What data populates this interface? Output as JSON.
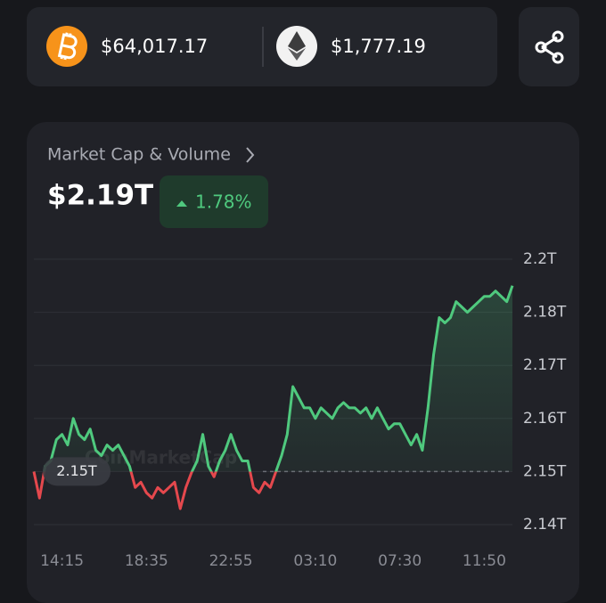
{
  "prices": {
    "btc": "$64,017.17",
    "eth": "$1,777.19"
  },
  "header": {
    "title": "Market Cap & Volume",
    "value": "$2.19T",
    "change": "1.78%"
  },
  "chart_data": {
    "type": "line",
    "watermark": "CoinMarketCap",
    "categories": [
      null,
      null,
      null,
      null,
      null,
      "14:15",
      null,
      null,
      null,
      null,
      null,
      null,
      null,
      null,
      null,
      null,
      null,
      null,
      null,
      null,
      "18:35",
      null,
      null,
      null,
      null,
      null,
      null,
      null,
      null,
      null,
      null,
      null,
      null,
      null,
      null,
      "22:55",
      null,
      null,
      null,
      null,
      null,
      null,
      null,
      null,
      null,
      null,
      null,
      null,
      null,
      null,
      "03:10",
      null,
      null,
      null,
      null,
      null,
      null,
      null,
      null,
      null,
      null,
      null,
      null,
      null,
      null,
      "07:30",
      null,
      null,
      null,
      null,
      null,
      null,
      null,
      null,
      null,
      null,
      null,
      null,
      null,
      null,
      "11:50",
      null,
      null,
      null,
      null,
      null
    ],
    "values": [
      2.15,
      2.145,
      2.151,
      2.152,
      2.156,
      2.157,
      2.155,
      2.16,
      2.157,
      2.156,
      2.158,
      2.154,
      2.153,
      2.155,
      2.154,
      2.155,
      2.153,
      2.151,
      2.147,
      2.148,
      2.146,
      2.145,
      2.147,
      2.146,
      2.147,
      2.148,
      2.143,
      2.147,
      2.1498,
      2.152,
      2.157,
      2.151,
      2.149,
      2.152,
      2.154,
      2.157,
      2.154,
      2.152,
      2.152,
      2.147,
      2.146,
      2.148,
      2.147,
      2.15,
      2.153,
      2.157,
      2.166,
      2.164,
      2.162,
      2.162,
      2.16,
      2.162,
      2.161,
      2.16,
      2.162,
      2.163,
      2.162,
      2.162,
      2.161,
      2.162,
      2.16,
      2.162,
      2.16,
      2.158,
      2.159,
      2.159,
      2.157,
      2.155,
      2.157,
      2.154,
      2.162,
      2.172,
      2.179,
      2.178,
      2.179,
      2.182,
      2.181,
      2.18,
      2.181,
      2.182,
      2.183,
      2.183,
      2.184,
      2.183,
      2.182,
      2.185
    ],
    "baseline": {
      "value": 2.15,
      "label": "2.15T"
    },
    "up_color": "#4fc97e",
    "down_color": "#e5484d",
    "ylim": [
      2.14,
      2.19
    ],
    "yticks": [
      {
        "value": 2.14,
        "label": "2.14T"
      },
      {
        "value": 2.15,
        "label": "2.15T"
      },
      {
        "value": 2.16,
        "label": "2.16T"
      },
      {
        "value": 2.17,
        "label": "2.17T"
      },
      {
        "value": 2.18,
        "label": "2.18T"
      },
      {
        "value": 2.19,
        "label": "2.2T"
      }
    ],
    "grid": true
  }
}
